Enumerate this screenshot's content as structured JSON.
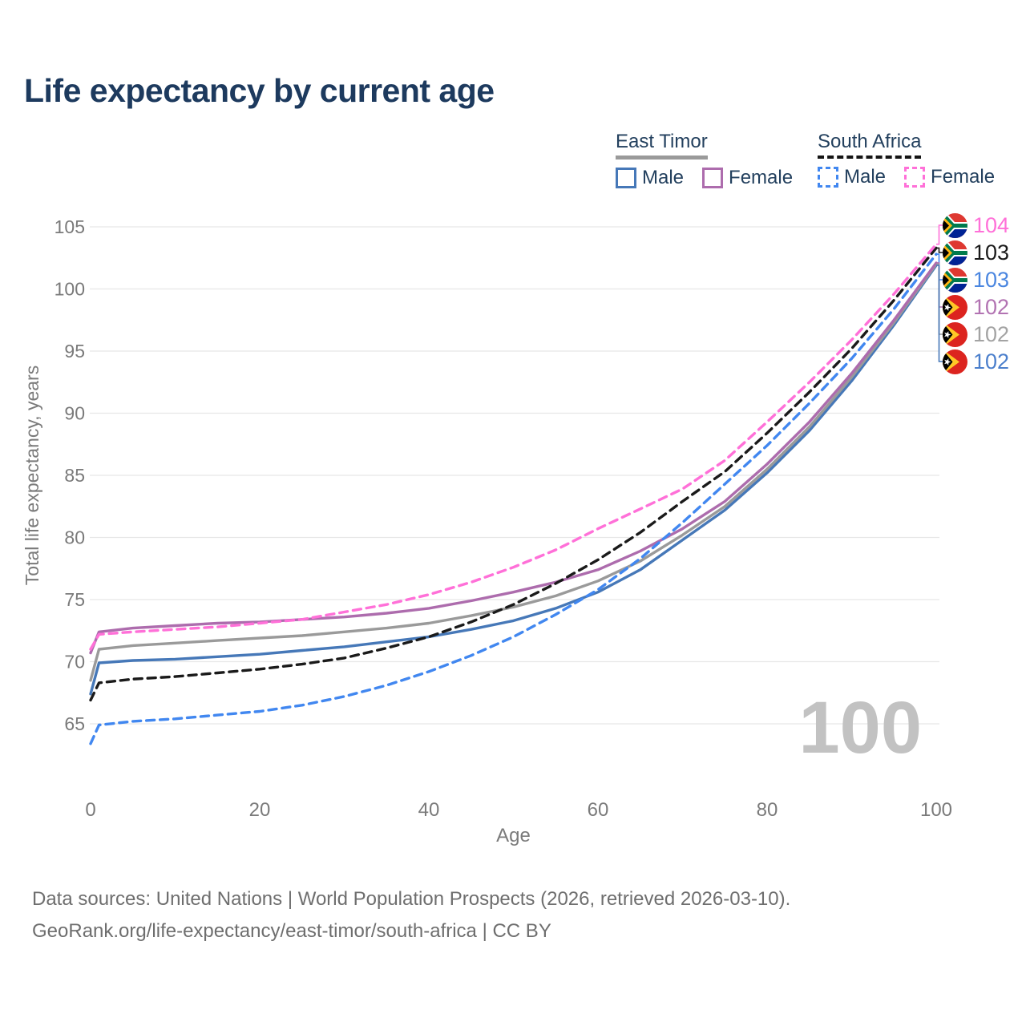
{
  "title": "Life expectancy by current age",
  "watermark": "100",
  "legend": {
    "groups": [
      {
        "name": "East Timor",
        "line_style": "solid",
        "underline_color": "#9a9a9a",
        "items": [
          {
            "label": "Male",
            "color": "#4678b8"
          },
          {
            "label": "Female",
            "color": "#ad6cad"
          }
        ]
      },
      {
        "name": "South Africa",
        "line_style": "dashed",
        "underline_color": "#141414",
        "items": [
          {
            "label": "Male",
            "color": "#4187f0"
          },
          {
            "label": "Female",
            "color": "#ff70d8"
          }
        ]
      }
    ]
  },
  "end_labels": [
    {
      "value": "104",
      "color": "#ff70d8",
      "flag": "south-africa",
      "series": "South Africa Female"
    },
    {
      "value": "103",
      "color": "#1a1a1a",
      "flag": "south-africa",
      "series": "South Africa All"
    },
    {
      "value": "103",
      "color": "#4a86e0",
      "flag": "south-africa",
      "series": "South Africa Male"
    },
    {
      "value": "102",
      "color": "#b273b2",
      "flag": "east-timor",
      "series": "East Timor Female"
    },
    {
      "value": "102",
      "color": "#a3a3a3",
      "flag": "east-timor",
      "series": "East Timor All"
    },
    {
      "value": "102",
      "color": "#4b7fcc",
      "flag": "east-timor",
      "series": "East Timor Male"
    }
  ],
  "footer": {
    "line1": "Data sources: United Nations | World Population Prospects (2026, retrieved 2026-03-10).",
    "line2": "GeoRank.org/life-expectancy/east-timor/south-africa | CC BY"
  },
  "chart_data": {
    "type": "line",
    "title": "Life expectancy by current age",
    "xlabel": "Age",
    "ylabel": "Total life expectancy, years",
    "xlim": [
      0,
      100
    ],
    "ylim": [
      63,
      106
    ],
    "x_ticks": [
      0,
      20,
      40,
      60,
      80,
      100
    ],
    "y_ticks": [
      65,
      70,
      75,
      80,
      85,
      90,
      95,
      100,
      105
    ],
    "grid": "horizontal-only",
    "legend_position": "top-right",
    "x": [
      0,
      1,
      5,
      10,
      15,
      20,
      25,
      30,
      35,
      40,
      45,
      50,
      55,
      60,
      65,
      70,
      75,
      80,
      85,
      90,
      95,
      100
    ],
    "series": [
      {
        "name": "East Timor Male",
        "country": "East Timor",
        "sex": "Male",
        "color": "#4678b8",
        "dashed": false,
        "values": [
          67.4,
          69.9,
          70.1,
          70.2,
          70.4,
          70.6,
          70.9,
          71.2,
          71.6,
          72.0,
          72.6,
          73.3,
          74.3,
          75.6,
          77.4,
          79.8,
          82.2,
          85.2,
          88.6,
          92.6,
          97.1,
          101.9
        ]
      },
      {
        "name": "East Timor All",
        "country": "East Timor",
        "sex": "Both sexes",
        "color": "#9a9a9a",
        "dashed": false,
        "values": [
          68.5,
          71.0,
          71.3,
          71.5,
          71.7,
          71.9,
          72.1,
          72.4,
          72.7,
          73.1,
          73.7,
          74.4,
          75.3,
          76.5,
          78.1,
          80.2,
          82.5,
          85.5,
          88.9,
          92.9,
          97.3,
          102.0
        ]
      },
      {
        "name": "East Timor Female",
        "country": "East Timor",
        "sex": "Female",
        "color": "#ad6cad",
        "dashed": false,
        "values": [
          70.7,
          72.4,
          72.7,
          72.9,
          73.1,
          73.2,
          73.4,
          73.6,
          73.9,
          74.3,
          74.9,
          75.6,
          76.4,
          77.4,
          78.9,
          80.7,
          82.9,
          85.9,
          89.3,
          93.2,
          97.5,
          102.1
        ]
      },
      {
        "name": "South Africa All",
        "country": "South Africa",
        "sex": "Both sexes",
        "color": "#1a1a1a",
        "dashed": true,
        "values": [
          66.9,
          68.3,
          68.6,
          68.8,
          69.1,
          69.4,
          69.8,
          70.3,
          71.1,
          72.0,
          73.2,
          74.6,
          76.3,
          78.2,
          80.4,
          82.9,
          85.3,
          88.4,
          91.7,
          95.2,
          99.1,
          103.3
        ]
      },
      {
        "name": "South Africa Male",
        "country": "South Africa",
        "sex": "Male",
        "color": "#4187f0",
        "dashed": true,
        "values": [
          63.4,
          64.9,
          65.2,
          65.4,
          65.7,
          66.0,
          66.5,
          67.2,
          68.1,
          69.2,
          70.5,
          72.0,
          73.8,
          75.8,
          78.3,
          81.2,
          84.3,
          87.4,
          90.8,
          94.4,
          98.4,
          102.8
        ]
      },
      {
        "name": "South Africa Female",
        "country": "South Africa",
        "sex": "Female",
        "color": "#ff70d8",
        "dashed": true,
        "values": [
          71.0,
          72.2,
          72.4,
          72.6,
          72.8,
          73.1,
          73.4,
          74.0,
          74.6,
          75.4,
          76.4,
          77.6,
          79.0,
          80.7,
          82.3,
          83.9,
          86.2,
          89.3,
          92.5,
          95.9,
          99.6,
          103.6
        ]
      }
    ]
  }
}
